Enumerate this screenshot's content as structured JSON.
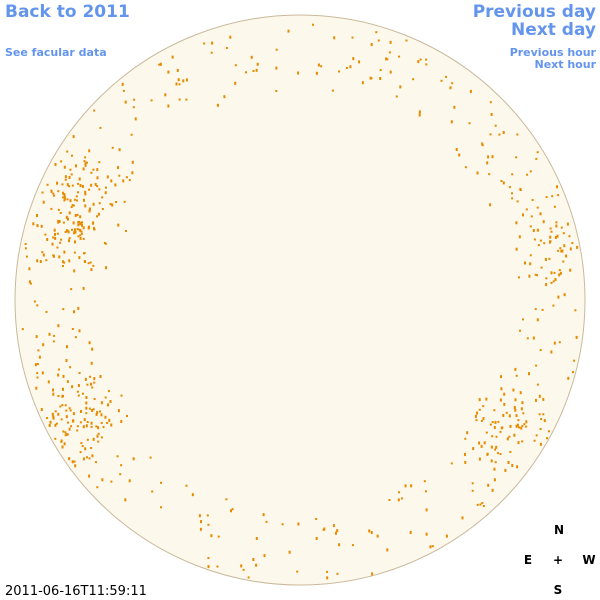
{
  "nav": {
    "back": "Back to 2011",
    "facular": "See facular data",
    "previous_day": "Previous day",
    "next_day": "Next day",
    "previous_hour": "Previous hour",
    "next_hour": "Next hour"
  },
  "timestamp": "2011-06-16T11:59:11",
  "compass": {
    "north": "N",
    "east": "E",
    "center": "+",
    "west": "W",
    "south": "S"
  }
}
